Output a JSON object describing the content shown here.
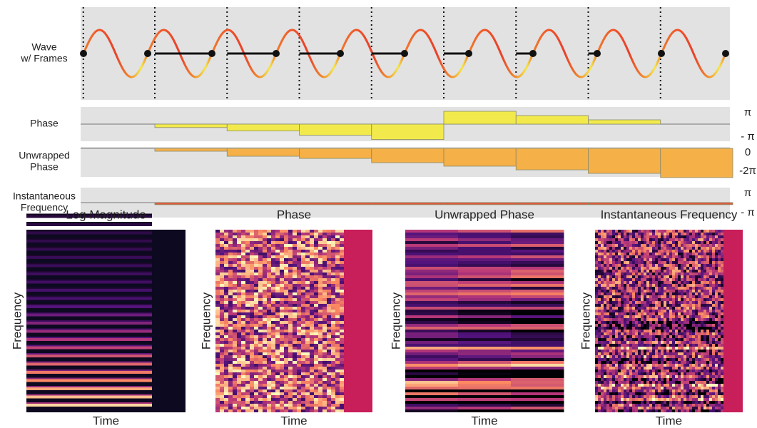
{
  "wave_panel": {
    "title": [
      "Wave",
      "w/ Frames"
    ]
  },
  "chart_data": [
    {
      "type": "bar",
      "title": [
        "Phase"
      ],
      "ylim": [
        -1,
        1
      ],
      "yticks": [
        {
          "value": 1,
          "label": "π"
        },
        {
          "value": -1,
          "label": "- π"
        }
      ],
      "values": [
        -0.2,
        -0.4,
        -0.65,
        -0.9,
        0.75,
        0.5,
        0.25,
        0
      ],
      "color": "#f2ea4c"
    },
    {
      "type": "bar",
      "title": [
        "Unwrapped",
        "Phase"
      ],
      "ylim": [
        -2.5,
        0.125
      ],
      "yticks": [
        0,
        {
          "value": -2,
          "label": "-2π"
        }
      ],
      "values": [
        -0.25,
        -0.69,
        -0.88,
        -1.25,
        -1.56,
        -1.88,
        -2.19,
        -2.56
      ],
      "color": "#f5b048"
    },
    {
      "type": "bar",
      "title": [
        "Instantaneous",
        "Frequency"
      ],
      "ylim": [
        -1.45,
        1.45
      ],
      "yticks": [
        {
          "value": 1,
          "label": "π"
        },
        {
          "value": -1,
          "label": "- π"
        }
      ],
      "values": [
        -0.2,
        -0.2,
        -0.2,
        -0.2,
        -0.2,
        -0.2,
        -0.2,
        -0.2
      ],
      "color": "#e05a3c"
    }
  ],
  "spectrograms": [
    {
      "title": "Log Magnitude",
      "xlabel": "Time",
      "ylabel": "Frequency"
    },
    {
      "title": "Phase",
      "xlabel": "Time",
      "ylabel": "Frequency"
    },
    {
      "title": "Unwrapped Phase",
      "xlabel": "Time",
      "ylabel": "Frequency"
    },
    {
      "title": "Instantaneous Frequency",
      "xlabel": "Time",
      "ylabel": "Frequency"
    }
  ]
}
